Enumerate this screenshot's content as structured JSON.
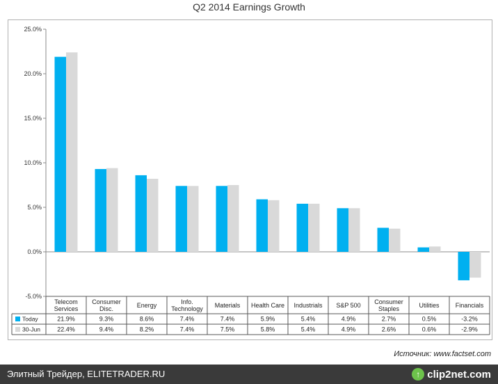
{
  "chart_data": {
    "type": "bar",
    "title": "Q2 2014 Earnings Growth",
    "categories": [
      [
        "Telecom",
        "Services"
      ],
      [
        "Consumer",
        "Disc."
      ],
      [
        "Energy"
      ],
      [
        "Info.",
        "Technology"
      ],
      [
        "Materials"
      ],
      [
        "Health Care"
      ],
      [
        "Industrials"
      ],
      [
        "S&P 500"
      ],
      [
        "Consumer",
        "Staples"
      ],
      [
        "Utilities"
      ],
      [
        "Financials"
      ]
    ],
    "series": [
      {
        "name": "Today",
        "color": "#00b0f0",
        "values": [
          21.9,
          9.3,
          8.6,
          7.4,
          7.4,
          5.9,
          5.4,
          4.9,
          2.7,
          0.5,
          -3.2
        ],
        "labels": [
          "21.9%",
          "9.3%",
          "8.6%",
          "7.4%",
          "7.4%",
          "5.9%",
          "5.4%",
          "4.9%",
          "2.7%",
          "0.5%",
          "-3.2%"
        ]
      },
      {
        "name": "30-Jun",
        "color": "#d9d9d9",
        "values": [
          22.4,
          9.4,
          8.2,
          7.4,
          7.5,
          5.8,
          5.4,
          4.9,
          2.6,
          0.6,
          -2.9
        ],
        "labels": [
          "22.4%",
          "9.4%",
          "8.2%",
          "7.4%",
          "7.5%",
          "5.8%",
          "5.4%",
          "4.9%",
          "2.6%",
          "0.6%",
          "-2.9%"
        ]
      }
    ],
    "ylim": [
      -5,
      25
    ],
    "yticks": [
      -5,
      0,
      5,
      10,
      15,
      20,
      25
    ],
    "ytick_labels": [
      "-5.0%",
      "0.0%",
      "5.0%",
      "10.0%",
      "15.0%",
      "20.0%",
      "25.0%"
    ],
    "xlabel": "",
    "ylabel": "",
    "grid": false,
    "legend": "data-table-left"
  },
  "source_note": "Источник: www.factset.com",
  "footer": {
    "text": "Элитный Трейдер, ELITETRADER.RU",
    "logo_text": "clip2net.com",
    "logo_icon": "↑"
  }
}
